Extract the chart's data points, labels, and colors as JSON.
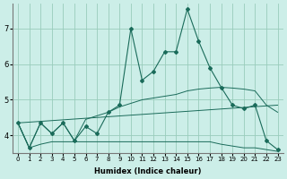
{
  "xlabel": "Humidex (Indice chaleur)",
  "bg_color": "#cceee8",
  "grid_color": "#99ccbb",
  "line_color": "#1a6b5a",
  "xlim": [
    -0.5,
    23.5
  ],
  "ylim": [
    3.5,
    7.7
  ],
  "yticks": [
    4,
    5,
    6,
    7
  ],
  "xticks": [
    0,
    1,
    2,
    3,
    4,
    5,
    6,
    7,
    8,
    9,
    10,
    11,
    12,
    13,
    14,
    15,
    16,
    17,
    18,
    19,
    20,
    21,
    22,
    23
  ],
  "main_x": [
    0,
    1,
    2,
    3,
    4,
    5,
    6,
    7,
    8,
    9,
    10,
    11,
    12,
    13,
    14,
    15,
    16,
    17,
    18,
    19,
    20,
    21,
    22,
    23
  ],
  "main_y": [
    4.35,
    3.65,
    4.35,
    4.05,
    4.35,
    3.85,
    4.25,
    4.05,
    4.65,
    4.85,
    7.0,
    5.55,
    5.8,
    6.35,
    6.35,
    7.55,
    6.65,
    5.9,
    5.35,
    4.85,
    4.75,
    4.85,
    3.85,
    3.6
  ],
  "line2_x": [
    0,
    1,
    2,
    3,
    4,
    5,
    6,
    7,
    8,
    9,
    10,
    11,
    12,
    13,
    14,
    15,
    16,
    17,
    18,
    19,
    20,
    21,
    22,
    23
  ],
  "line2_y": [
    4.35,
    3.65,
    4.35,
    4.05,
    4.35,
    3.85,
    4.45,
    4.55,
    4.65,
    4.8,
    4.9,
    5.0,
    5.05,
    5.1,
    5.15,
    5.25,
    5.3,
    5.33,
    5.35,
    5.33,
    5.3,
    5.25,
    4.85,
    4.65
  ],
  "line3_x": [
    0,
    23
  ],
  "line3_y": [
    4.35,
    4.85
  ],
  "line4_x": [
    0,
    1,
    2,
    3,
    4,
    5,
    6,
    7,
    8,
    9,
    10,
    11,
    12,
    13,
    14,
    15,
    16,
    17,
    18,
    19,
    20,
    21,
    22,
    23
  ],
  "line4_y": [
    4.35,
    3.65,
    3.75,
    3.82,
    3.82,
    3.82,
    3.82,
    3.82,
    3.82,
    3.82,
    3.82,
    3.82,
    3.82,
    3.82,
    3.82,
    3.82,
    3.82,
    3.82,
    3.75,
    3.7,
    3.65,
    3.65,
    3.6,
    3.55
  ]
}
